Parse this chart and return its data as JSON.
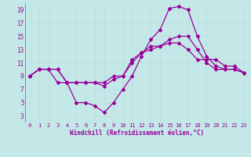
{
  "xlabel": "Windchill (Refroidissement éolien,°C)",
  "bg_color": "#c4e8e8",
  "line_color": "#990099",
  "grid_color": "#aadddd",
  "xlim": [
    -0.5,
    23.5
  ],
  "ylim": [
    2,
    20
  ],
  "xticks": [
    0,
    1,
    2,
    3,
    4,
    5,
    6,
    7,
    8,
    9,
    10,
    11,
    12,
    13,
    14,
    15,
    16,
    17,
    18,
    19,
    20,
    21,
    22,
    23
  ],
  "yticks": [
    3,
    5,
    7,
    9,
    11,
    13,
    15,
    17,
    19
  ],
  "line1_x": [
    0,
    1,
    2,
    3,
    4,
    5,
    6,
    7,
    8,
    9,
    10,
    11,
    12,
    13,
    14,
    15,
    16,
    17,
    18,
    19,
    20,
    21,
    22,
    23
  ],
  "line1_y": [
    9,
    10,
    10,
    10,
    8,
    5,
    5,
    4.5,
    3.5,
    5,
    7,
    9,
    12,
    14.5,
    16,
    19.2,
    19.5,
    19,
    15,
    12,
    10.5,
    10,
    10,
    9.5
  ],
  "line2_x": [
    0,
    1,
    2,
    3,
    4,
    5,
    6,
    7,
    8,
    9,
    10,
    11,
    12,
    13,
    14,
    15,
    16,
    17,
    18,
    19,
    20,
    21,
    22,
    23
  ],
  "line2_y": [
    9,
    10,
    10,
    8,
    8,
    8,
    8,
    8,
    7.5,
    8.5,
    9,
    11,
    12.5,
    13,
    13.5,
    14,
    14,
    13,
    11.5,
    11.5,
    11.5,
    10.5,
    10.5,
    9.5
  ],
  "line3_x": [
    0,
    1,
    2,
    3,
    4,
    5,
    6,
    7,
    8,
    9,
    10,
    11,
    12,
    13,
    14,
    15,
    16,
    17,
    18,
    19,
    20,
    21,
    22,
    23
  ],
  "line3_y": [
    9,
    10,
    10,
    10,
    8,
    8,
    8,
    8,
    8,
    9,
    9,
    11.5,
    12.5,
    13.5,
    13.5,
    14.5,
    15,
    15,
    13,
    11,
    10,
    10,
    10,
    9.5
  ]
}
